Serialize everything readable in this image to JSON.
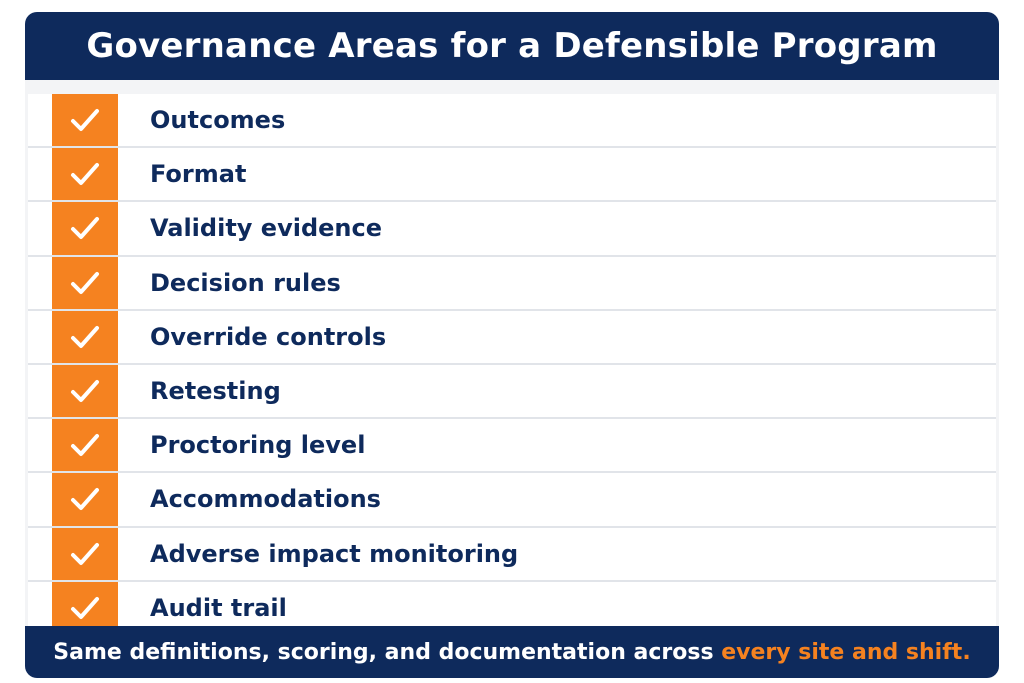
{
  "title": "Governance Areas for a Defensible Program",
  "items": [
    {
      "label": "Outcomes",
      "checked": true
    },
    {
      "label": "Format",
      "checked": true
    },
    {
      "label": "Validity evidence",
      "checked": true
    },
    {
      "label": "Decision rules",
      "checked": true
    },
    {
      "label": "Override controls",
      "checked": true
    },
    {
      "label": "Retesting",
      "checked": true
    },
    {
      "label": "Proctoring level",
      "checked": true
    },
    {
      "label": "Accommodations",
      "checked": true
    },
    {
      "label": "Adverse impact monitoring",
      "checked": true
    },
    {
      "label": "Audit trail",
      "checked": true
    }
  ],
  "footer": {
    "text": "Same definitions, scoring, and documentation across",
    "highlight": "every site and shift."
  },
  "colors": {
    "navy": "#0e2a5c",
    "orange": "#f58220",
    "divider": "#e1e4e9"
  },
  "icons": {
    "check": "checkmark-icon"
  }
}
